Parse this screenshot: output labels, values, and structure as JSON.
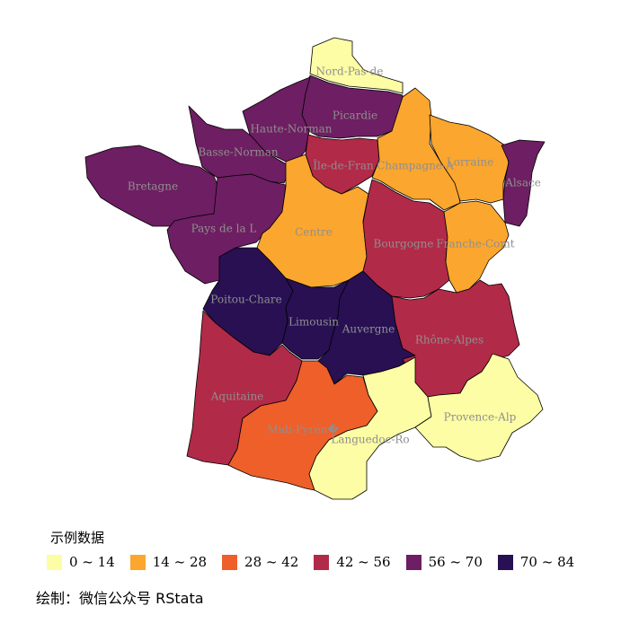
{
  "legend": {
    "title": "示例数据",
    "bins": [
      {
        "label": "0 ~ 14",
        "color": "#FCFDA4"
      },
      {
        "label": "14 ~ 28",
        "color": "#FBA62E"
      },
      {
        "label": "28 ~ 42",
        "color": "#EE5F2A"
      },
      {
        "label": "42 ~ 56",
        "color": "#B12A48"
      },
      {
        "label": "56 ~ 70",
        "color": "#6E1E62"
      },
      {
        "label": "70 ~ 84",
        "color": "#281053"
      }
    ]
  },
  "caption": "绘制：微信公众号 RStata",
  "regions": [
    {
      "name": "Nord-Pas-de",
      "bin": 0
    },
    {
      "name": "Picardie",
      "bin": 4
    },
    {
      "name": "Haute-Norman",
      "bin": 4
    },
    {
      "name": "Basse-Norman",
      "bin": 4
    },
    {
      "name": "Bretagne",
      "bin": 4
    },
    {
      "name": "Pays de la L",
      "bin": 4
    },
    {
      "name": "Île-de-Fran",
      "bin": 3
    },
    {
      "name": "Champagne-A",
      "bin": 1
    },
    {
      "name": "Lorraine",
      "bin": 1
    },
    {
      "name": "Alsace",
      "bin": 4
    },
    {
      "name": "Centre",
      "bin": 1
    },
    {
      "name": "Bourgogne",
      "bin": 3
    },
    {
      "name": "Franche-Comt",
      "bin": 1
    },
    {
      "name": "Poitou-Chare",
      "bin": 5
    },
    {
      "name": "Limousin",
      "bin": 5
    },
    {
      "name": "Auvergne",
      "bin": 5
    },
    {
      "name": "Rhône-Alpes",
      "bin": 3
    },
    {
      "name": "Aquitaine",
      "bin": 3
    },
    {
      "name": "Midi-Pyrén�",
      "bin": 2
    },
    {
      "name": "Languedoc-Ro",
      "bin": 0
    },
    {
      "name": "Provence-Alp",
      "bin": 0
    }
  ]
}
